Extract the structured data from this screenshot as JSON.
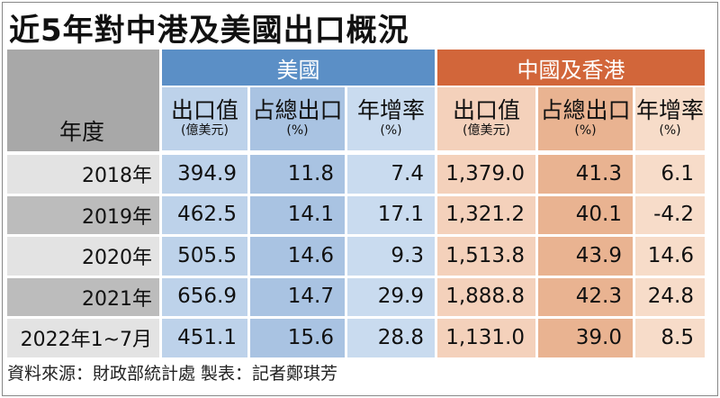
{
  "title": "近5年對中港及美國出口概況",
  "source": "資料來源：財政部統計處 製表：記者鄭琪芳",
  "colors": {
    "us_header": "#5b8fc6",
    "cn_header": "#d2663a",
    "us_col1": "#bdd2ea",
    "us_col2": "#a9c3e2",
    "us_col3": "#c9dbef",
    "cn_col1": "#f4d1bb",
    "cn_col2": "#e9b391",
    "cn_col3": "#f7dcc9"
  },
  "chart_data": {
    "type": "table",
    "title": "近5年對中港及美國出口概況",
    "row_header": "年度",
    "groups": [
      {
        "name": "美國",
        "columns": [
          {
            "label": "出口值",
            "unit": "(億美元)"
          },
          {
            "label": "占總出口",
            "unit": "(%)"
          },
          {
            "label": "年增率",
            "unit": "(%)"
          }
        ]
      },
      {
        "name": "中國及香港",
        "columns": [
          {
            "label": "出口值",
            "unit": "(億美元)"
          },
          {
            "label": "占總出口",
            "unit": "(%)"
          },
          {
            "label": "年增率",
            "unit": "(%)"
          }
        ]
      }
    ],
    "rows": [
      {
        "year": "2018年",
        "values": [
          "394.9",
          "11.8",
          "7.4",
          "1,379.0",
          "41.3",
          "6.1"
        ]
      },
      {
        "year": "2019年",
        "values": [
          "462.5",
          "14.1",
          "17.1",
          "1,321.2",
          "40.1",
          "-4.2"
        ]
      },
      {
        "year": "2020年",
        "values": [
          "505.5",
          "14.6",
          "9.3",
          "1,513.8",
          "43.9",
          "14.6"
        ]
      },
      {
        "year": "2021年",
        "values": [
          "656.9",
          "14.7",
          "29.9",
          "1,888.8",
          "42.3",
          "24.8"
        ]
      },
      {
        "year": "2022年1~7月",
        "values": [
          "451.1",
          "15.6",
          "28.8",
          "1,131.0",
          "39.0",
          "8.5"
        ]
      }
    ]
  }
}
